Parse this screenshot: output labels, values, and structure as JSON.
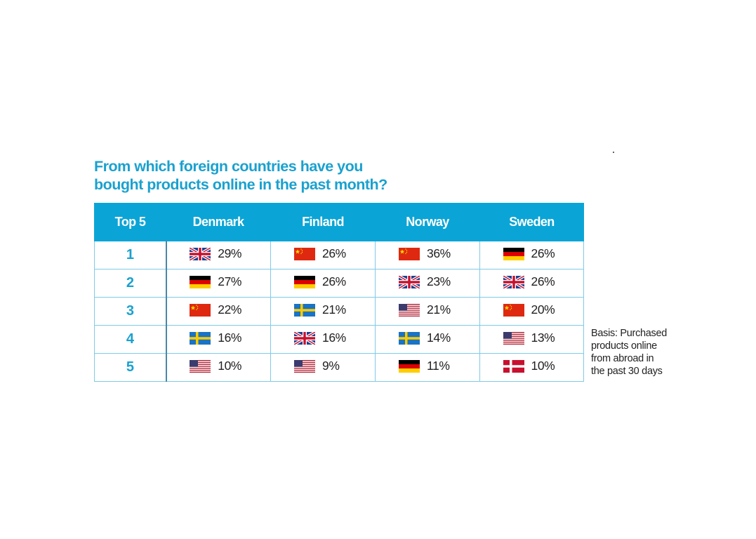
{
  "chart_data": {
    "type": "table",
    "title_lines": [
      "From which foreign countries have you",
      "bought products online in the past month?"
    ],
    "columns": [
      "Top 5",
      "Denmark",
      "Finland",
      "Norway",
      "Sweden"
    ],
    "rows": [
      {
        "rank": "1",
        "cells": [
          {
            "flag": "uk-flag-icon",
            "value": "29%"
          },
          {
            "flag": "china-flag-icon",
            "value": "26%"
          },
          {
            "flag": "china-flag-icon",
            "value": "36%"
          },
          {
            "flag": "germany-flag-icon",
            "value": "26%"
          }
        ]
      },
      {
        "rank": "2",
        "cells": [
          {
            "flag": "germany-flag-icon",
            "value": "27%"
          },
          {
            "flag": "germany-flag-icon",
            "value": "26%"
          },
          {
            "flag": "uk-flag-icon",
            "value": "23%"
          },
          {
            "flag": "uk-flag-icon",
            "value": "26%"
          }
        ]
      },
      {
        "rank": "3",
        "cells": [
          {
            "flag": "china-flag-icon",
            "value": "22%"
          },
          {
            "flag": "sweden-flag-icon",
            "value": "21%"
          },
          {
            "flag": "usa-flag-icon",
            "value": "21%"
          },
          {
            "flag": "china-flag-icon",
            "value": "20%"
          }
        ]
      },
      {
        "rank": "4",
        "cells": [
          {
            "flag": "sweden-flag-icon",
            "value": "16%"
          },
          {
            "flag": "uk-flag-icon",
            "value": "16%"
          },
          {
            "flag": "sweden-flag-icon",
            "value": "14%"
          },
          {
            "flag": "usa-flag-icon",
            "value": "13%"
          }
        ]
      },
      {
        "rank": "5",
        "cells": [
          {
            "flag": "usa-flag-icon",
            "value": "10%"
          },
          {
            "flag": "usa-flag-icon",
            "value": "9%"
          },
          {
            "flag": "germany-flag-icon",
            "value": "11%"
          },
          {
            "flag": "denmark-flag-icon",
            "value": "10%"
          }
        ]
      }
    ],
    "note_lines": [
      "Basis: Purchased",
      "products online",
      "from abroad in",
      "the past 30 days"
    ]
  },
  "colors": {
    "accent": "#0aa5d6",
    "title": "#1aa1cf",
    "cell_border": "#7fcbe6"
  }
}
